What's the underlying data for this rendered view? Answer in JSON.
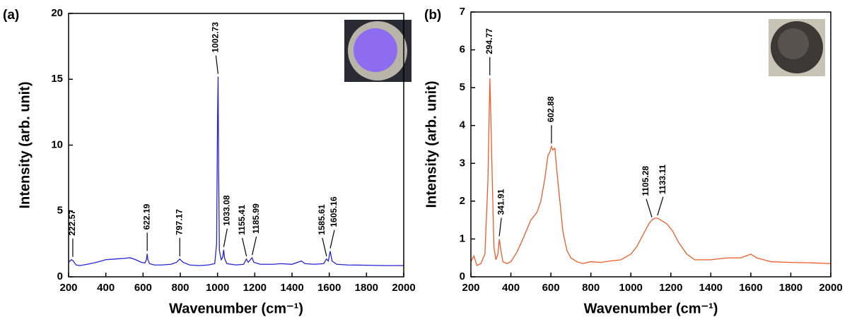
{
  "chart_data": [
    {
      "type": "line",
      "panel_label": "(a)",
      "x_label": "Wavenumber (cm⁻¹)",
      "y_label": "Intensity (arb. unit)",
      "xlim": [
        200,
        2000
      ],
      "xticks": [
        200,
        400,
        600,
        800,
        1000,
        1200,
        1400,
        1600,
        1800,
        2000
      ],
      "ylim": [
        0,
        20
      ],
      "yticks": [
        0,
        5,
        10,
        15,
        20
      ],
      "x": [
        200,
        215,
        225,
        240,
        260,
        300,
        350,
        400,
        450,
        500,
        530,
        560,
        590,
        610,
        618,
        622,
        626,
        635,
        660,
        700,
        750,
        780,
        797,
        815,
        850,
        900,
        950,
        985,
        995,
        1000,
        1003,
        1006,
        1010,
        1020,
        1028,
        1033,
        1038,
        1050,
        1100,
        1140,
        1155,
        1165,
        1185,
        1195,
        1230,
        1300,
        1340,
        1400,
        1450,
        1470,
        1520,
        1570,
        1585,
        1595,
        1605,
        1615,
        1640,
        1700,
        1800,
        1900,
        2000
      ],
      "series": [
        {
          "color": "#2424d4",
          "values": [
            1.1,
            1.3,
            1.2,
            0.9,
            0.85,
            0.95,
            1.1,
            1.3,
            1.35,
            1.4,
            1.45,
            1.3,
            1.1,
            1.05,
            1.3,
            1.75,
            1.3,
            1.0,
            0.9,
            0.9,
            0.95,
            1.1,
            1.35,
            1.1,
            0.9,
            0.85,
            0.9,
            1.0,
            2.5,
            12,
            15.2,
            8,
            2.0,
            1.3,
            1.5,
            2.05,
            1.4,
            1.0,
            0.9,
            0.95,
            1.35,
            1.1,
            1.45,
            1.1,
            0.95,
            0.95,
            1.0,
            0.95,
            1.2,
            1.0,
            0.95,
            1.0,
            1.35,
            1.2,
            1.95,
            1.2,
            0.95,
            0.9,
            0.88,
            0.85,
            0.85
          ]
        }
      ],
      "peaks": [
        222.57,
        622.19,
        797.17,
        1002.73,
        1033.08,
        1155.41,
        1185.99,
        1585.61,
        1605.16
      ]
    },
    {
      "type": "line",
      "panel_label": "(b)",
      "x_label": "Wavenumber (cm⁻¹)",
      "y_label": "Intensity (arb. unit)",
      "xlim": [
        200,
        2000
      ],
      "xticks": [
        200,
        400,
        600,
        800,
        1000,
        1200,
        1400,
        1600,
        1800,
        2000
      ],
      "ylim": [
        0,
        7
      ],
      "yticks": [
        0,
        1,
        2,
        3,
        4,
        5,
        6,
        7
      ],
      "x": [
        200,
        215,
        230,
        250,
        270,
        285,
        295,
        305,
        315,
        325,
        335,
        342,
        350,
        360,
        380,
        400,
        430,
        460,
        500,
        530,
        550,
        570,
        585,
        595,
        603,
        610,
        620,
        630,
        645,
        660,
        680,
        700,
        730,
        760,
        800,
        850,
        900,
        950,
        1000,
        1030,
        1060,
        1090,
        1105,
        1120,
        1133,
        1150,
        1180,
        1210,
        1240,
        1280,
        1320,
        1400,
        1480,
        1550,
        1600,
        1630,
        1700,
        1800,
        1900,
        2000
      ],
      "series": [
        {
          "color": "#f05a28",
          "values": [
            0.4,
            0.55,
            0.3,
            0.35,
            0.6,
            2.5,
            5.25,
            3.0,
            0.8,
            0.45,
            0.6,
            1.0,
            0.7,
            0.4,
            0.35,
            0.4,
            0.65,
            1.0,
            1.5,
            1.7,
            2.0,
            2.6,
            3.2,
            3.3,
            3.45,
            3.35,
            3.4,
            2.8,
            2.0,
            1.2,
            0.7,
            0.5,
            0.4,
            0.35,
            0.4,
            0.38,
            0.42,
            0.45,
            0.6,
            0.8,
            1.1,
            1.4,
            1.5,
            1.55,
            1.55,
            1.5,
            1.4,
            1.2,
            0.9,
            0.6,
            0.45,
            0.45,
            0.5,
            0.5,
            0.6,
            0.5,
            0.4,
            0.38,
            0.37,
            0.35
          ]
        }
      ],
      "peaks": [
        294.77,
        341.91,
        602.88,
        1105.28,
        1133.11
      ]
    }
  ]
}
